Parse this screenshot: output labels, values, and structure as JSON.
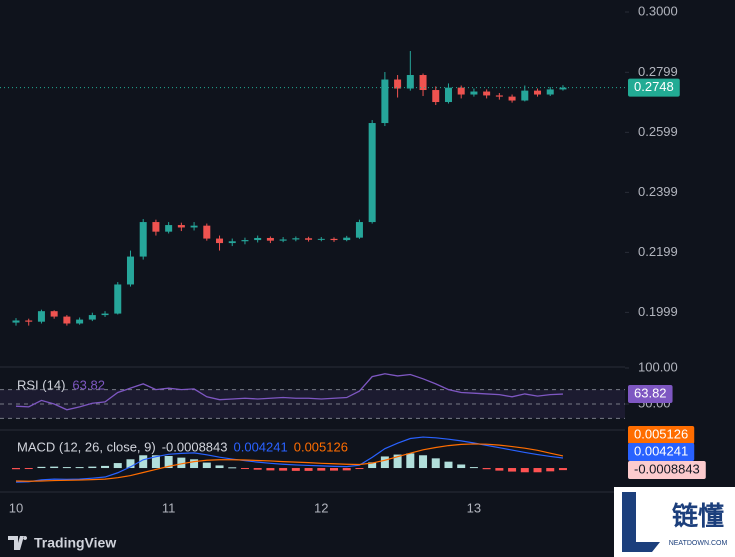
{
  "chart_data": [
    {
      "type": "candlestick",
      "categories": [
        "10",
        null,
        null,
        null,
        null,
        null,
        null,
        null,
        null,
        null,
        null,
        null,
        "11",
        null,
        null,
        null,
        null,
        null,
        null,
        null,
        null,
        null,
        null,
        null,
        "12",
        null,
        null,
        null,
        null,
        null,
        null,
        null,
        null,
        null,
        null,
        null,
        "13",
        null,
        null,
        null,
        null,
        null,
        null,
        null
      ],
      "open": [
        0.1965,
        0.1972,
        0.1968,
        0.2003,
        0.1985,
        0.1962,
        0.1975,
        0.199,
        0.1995,
        0.2092,
        0.2185,
        0.23,
        0.2268,
        0.229,
        0.2282,
        0.2288,
        0.2245,
        0.223,
        0.2236,
        0.224,
        0.2247,
        0.2238,
        0.2242,
        0.2246,
        0.2241,
        0.2244,
        0.224,
        0.2248,
        0.23,
        0.263,
        0.2775,
        0.2745,
        0.279,
        0.274,
        0.27,
        0.2748,
        0.2725,
        0.2735,
        0.2722,
        0.2718,
        0.2705,
        0.2738,
        0.2725,
        0.2742
      ],
      "high": [
        0.198,
        0.1978,
        0.2008,
        0.2006,
        0.199,
        0.1982,
        0.1998,
        0.2003,
        0.21,
        0.2205,
        0.231,
        0.2308,
        0.23,
        0.2298,
        0.23,
        0.2295,
        0.2255,
        0.2245,
        0.2248,
        0.2255,
        0.2252,
        0.225,
        0.2252,
        0.2251,
        0.225,
        0.2249,
        0.2254,
        0.2308,
        0.264,
        0.28,
        0.279,
        0.287,
        0.2795,
        0.2752,
        0.2762,
        0.2755,
        0.2745,
        0.2742,
        0.273,
        0.2725,
        0.2755,
        0.2745,
        0.275,
        0.2756
      ],
      "low": [
        0.1955,
        0.1955,
        0.1962,
        0.1978,
        0.1955,
        0.1958,
        0.197,
        0.1984,
        0.1992,
        0.2085,
        0.2175,
        0.2255,
        0.2262,
        0.227,
        0.2272,
        0.2238,
        0.2205,
        0.222,
        0.2226,
        0.2232,
        0.223,
        0.2233,
        0.2236,
        0.2235,
        0.2236,
        0.2234,
        0.2236,
        0.2244,
        0.2295,
        0.262,
        0.2715,
        0.2738,
        0.272,
        0.269,
        0.2695,
        0.2712,
        0.2718,
        0.2712,
        0.2708,
        0.2698,
        0.2702,
        0.2718,
        0.272,
        0.2738
      ],
      "close": [
        0.1972,
        0.1968,
        0.2003,
        0.1985,
        0.1962,
        0.1975,
        0.199,
        0.1995,
        0.2092,
        0.2185,
        0.23,
        0.2268,
        0.229,
        0.2282,
        0.2288,
        0.2245,
        0.223,
        0.2236,
        0.224,
        0.2247,
        0.2238,
        0.2242,
        0.2246,
        0.2241,
        0.2244,
        0.224,
        0.2248,
        0.23,
        0.263,
        0.2775,
        0.2745,
        0.279,
        0.274,
        0.27,
        0.2748,
        0.2725,
        0.2735,
        0.2722,
        0.2718,
        0.2705,
        0.2738,
        0.2725,
        0.2742,
        0.2748
      ],
      "up_color": "#26a69a",
      "down_color": "#ef5350",
      "badge_color": "#22ab94",
      "ylim": [
        0.1817,
        0.304
      ],
      "yticks": [
        {
          "value": 0.3,
          "label": "0.3000"
        },
        0.2799,
        0.2599,
        0.2399,
        0.2199,
        0.1999
      ]
    },
    {
      "type": "line",
      "title": "RSI (14)",
      "values": [
        47,
        46,
        55,
        50,
        42,
        46,
        51,
        53,
        66,
        72,
        78,
        70,
        72,
        70,
        71,
        60,
        56,
        57,
        58,
        57,
        58,
        59,
        58,
        58,
        57,
        58,
        59,
        68,
        88,
        92,
        89,
        91,
        85,
        78,
        70,
        66,
        65,
        64,
        63,
        60,
        64,
        61,
        63,
        63.82
      ],
      "color": "#7e57c2",
      "ylim": [
        13.9,
        101.4
      ],
      "yticks": [
        {
          "value": 100,
          "label": "100.00"
        },
        {
          "value": 50,
          "label": "50.00"
        }
      ],
      "bands": [
        70,
        50,
        30
      ]
    },
    {
      "type": "macd",
      "title": "MACD (12, 26, close, 9)",
      "histogram": {
        "values": [
          -0.0005,
          -0.0002,
          0.0005,
          0.0006,
          0.0004,
          0.0004,
          0.0006,
          0.0009,
          0.0021,
          0.0037,
          0.0054,
          0.0054,
          0.0051,
          0.0044,
          0.0037,
          0.0023,
          0.0011,
          0.0003,
          -0.0003,
          -0.0007,
          -0.001,
          -0.0011,
          -0.0012,
          -0.0012,
          -0.0011,
          -0.0011,
          -0.001,
          -0.0003,
          0.0024,
          0.0049,
          0.0057,
          0.0062,
          0.0054,
          0.0041,
          0.0027,
          0.0015,
          0.0004,
          -0.0005,
          -0.0011,
          -0.0015,
          -0.0018,
          -0.0018,
          -0.0014,
          -0.0008843
        ],
        "up_color": "#b2dfdb",
        "down_color": "#ff5252",
        "badge_color": "#fccbcd"
      },
      "macd": {
        "values": [
          -0.006,
          -0.0058,
          -0.005,
          -0.0047,
          -0.0048,
          -0.0047,
          -0.0043,
          -0.0038,
          -0.002,
          0.0005,
          0.0035,
          0.0048,
          0.0058,
          0.0062,
          0.0064,
          0.0056,
          0.0046,
          0.0038,
          0.0031,
          0.0025,
          0.002,
          0.0016,
          0.0013,
          0.0011,
          0.0009,
          0.0007,
          0.0006,
          0.0012,
          0.0045,
          0.0082,
          0.0105,
          0.0125,
          0.0131,
          0.0128,
          0.0122,
          0.0115,
          0.0106,
          0.0096,
          0.0086,
          0.0076,
          0.0066,
          0.0057,
          0.0049,
          0.004241
        ],
        "color": "#2962ff"
      },
      "signal": {
        "values": [
          -0.0055,
          -0.0056,
          -0.0055,
          -0.0053,
          -0.0052,
          -0.0051,
          -0.0049,
          -0.0047,
          -0.0041,
          -0.0032,
          -0.0019,
          -0.0006,
          0.0007,
          0.0018,
          0.0027,
          0.0033,
          0.0035,
          0.0035,
          0.0034,
          0.0032,
          0.003,
          0.0027,
          0.0025,
          0.0023,
          0.002,
          0.0018,
          0.0016,
          0.0015,
          0.0021,
          0.0033,
          0.0048,
          0.0063,
          0.0077,
          0.0087,
          0.0095,
          0.01,
          0.0102,
          0.0101,
          0.0097,
          0.0091,
          0.0084,
          0.0075,
          0.0063,
          0.005126
        ],
        "color": "#ff6d00"
      },
      "ylim": [
        -0.0093,
        0.0161
      ]
    }
  ],
  "brand": "TradingView",
  "watermark": {
    "title": "链懂",
    "subtitle": "NEATDOWN.COM"
  }
}
